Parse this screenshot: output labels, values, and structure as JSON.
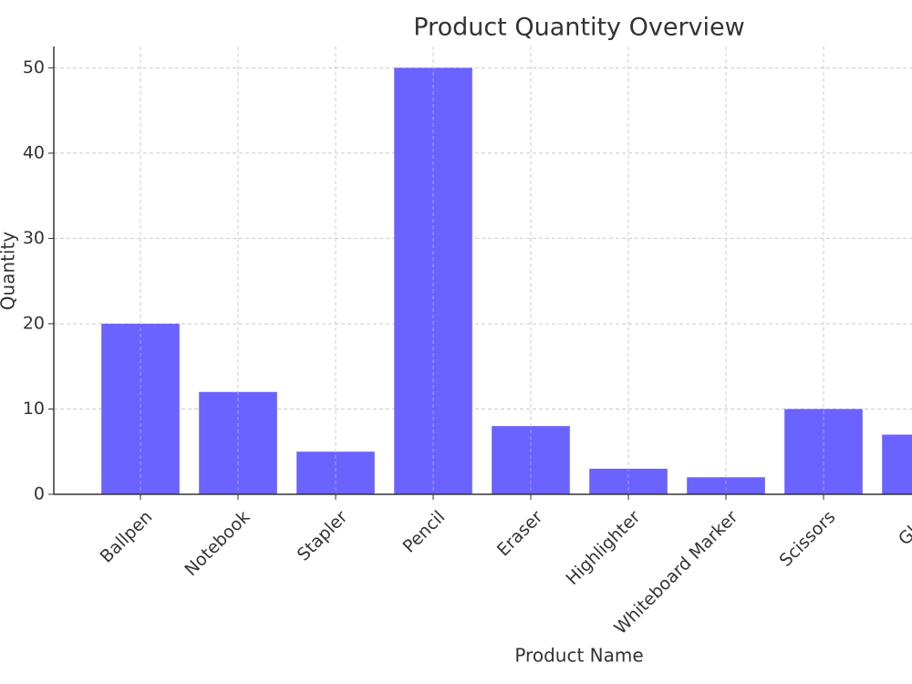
{
  "chart_data": {
    "type": "bar",
    "title": "Product Quantity Overview",
    "x_label": "Product Name",
    "y_label": "Quantity",
    "categories": [
      "Ballpen",
      "Notebook",
      "Stapler",
      "Pencil",
      "Eraser",
      "Highlighter",
      "Whiteboard Marker",
      "Scissors",
      "Glue"
    ],
    "values": [
      20,
      12,
      5,
      50,
      8,
      3,
      2,
      10,
      7
    ],
    "color": "#6b63ff",
    "ylim": [
      0,
      52.5
    ],
    "yticks": [
      0,
      10,
      20,
      30,
      40,
      50
    ],
    "grid": true
  }
}
